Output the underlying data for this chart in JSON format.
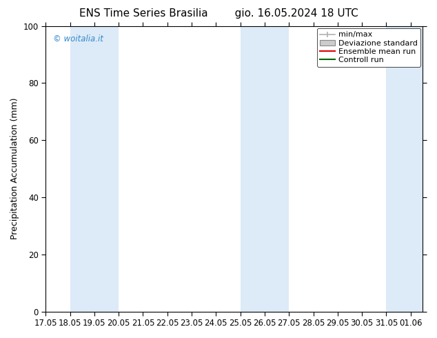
{
  "title_left": "ENS Time Series Brasilia",
  "title_right": "gio. 16.05.2024 18 UTC",
  "ylabel": "Precipitation Accumulation (mm)",
  "ylim": [
    0,
    100
  ],
  "xlim": [
    0,
    15.5
  ],
  "xtick_labels": [
    "17.05",
    "18.05",
    "19.05",
    "20.05",
    "21.05",
    "22.05",
    "23.05",
    "24.05",
    "25.05",
    "26.05",
    "27.05",
    "28.05",
    "29.05",
    "30.05",
    "31.05",
    "01.06"
  ],
  "xtick_positions": [
    0,
    1,
    2,
    3,
    4,
    5,
    6,
    7,
    8,
    9,
    10,
    11,
    12,
    13,
    14,
    15
  ],
  "ytick_labels": [
    "0",
    "20",
    "40",
    "60",
    "80",
    "100"
  ],
  "ytick_positions": [
    0,
    20,
    40,
    60,
    80,
    100
  ],
  "shaded_bands": [
    {
      "xmin": 1.0,
      "xmax": 2.0,
      "color": "#ddeaf7"
    },
    {
      "xmin": 2.0,
      "xmax": 3.0,
      "color": "#ddeaf7"
    },
    {
      "xmin": 8.0,
      "xmax": 9.0,
      "color": "#ddeaf7"
    },
    {
      "xmin": 9.0,
      "xmax": 10.0,
      "color": "#ddeaf7"
    },
    {
      "xmin": 14.0,
      "xmax": 15.5,
      "color": "#ddeaf7"
    }
  ],
  "legend_items": [
    {
      "label": "min/max",
      "color": "#b0b0b0",
      "type": "errbar"
    },
    {
      "label": "Deviazione standard",
      "color": "#cccccc",
      "type": "box"
    },
    {
      "label": "Ensemble mean run",
      "color": "#dd0000",
      "type": "line"
    },
    {
      "label": "Controll run",
      "color": "#006600",
      "type": "line"
    }
  ],
  "watermark": "© woitalia.it",
  "watermark_color": "#3388cc",
  "background_color": "#ffffff",
  "plot_bg_color": "#ffffff",
  "title_fontsize": 11,
  "axis_fontsize": 9,
  "tick_fontsize": 8.5,
  "legend_fontsize": 8
}
